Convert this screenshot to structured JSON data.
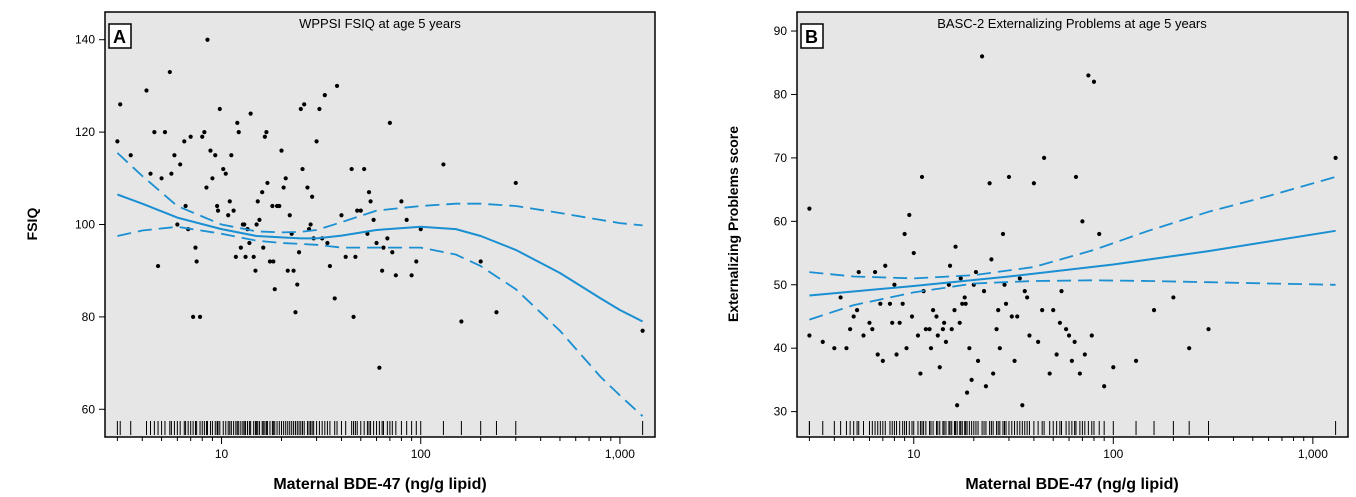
{
  "chart_data": [
    {
      "type": "scatter",
      "panel_label": "A",
      "title": "WPPSI FSIQ at age 5 years",
      "xlabel": "Maternal BDE-47 (ng/g lipid)",
      "ylabel": "FSIQ",
      "x_scale": "log",
      "xlim": [
        2.6,
        1500
      ],
      "ylim": [
        54,
        146
      ],
      "x_ticks": [
        10,
        100,
        1000
      ],
      "x_tick_labels": [
        "10",
        "100",
        "1,000"
      ],
      "y_ticks": [
        60,
        80,
        100,
        120,
        140
      ],
      "y_tick_labels": [
        "60",
        "80",
        "100",
        "120",
        "140"
      ],
      "background": "#e6e6e6",
      "fit_color": "#1a8fd1",
      "fit": {
        "x": [
          3,
          4,
          6,
          10,
          15,
          20,
          25,
          30,
          40,
          60,
          100,
          150,
          200,
          300,
          500,
          800,
          1000,
          1300
        ],
        "y": [
          106.5,
          104.5,
          101.5,
          99,
          97.5,
          97.2,
          97,
          97,
          97.6,
          98.8,
          99.5,
          99,
          97.5,
          94.5,
          89.5,
          84,
          81.5,
          79
        ]
      },
      "ci_upper": {
        "x": [
          3,
          4,
          6,
          10,
          15,
          20,
          25,
          30,
          40,
          60,
          100,
          150,
          200,
          300,
          500,
          800,
          1000,
          1300
        ],
        "y": [
          115.5,
          110.5,
          104,
          100,
          98.5,
          98.3,
          98.4,
          98.8,
          100.5,
          103,
          104,
          104.5,
          104.5,
          104,
          102.5,
          101,
          100.3,
          99.8
        ]
      },
      "ci_lower": {
        "x": [
          3,
          4,
          6,
          10,
          15,
          20,
          25,
          30,
          40,
          60,
          100,
          150,
          200,
          300,
          500,
          800,
          1000,
          1300
        ],
        "y": [
          97.5,
          98.7,
          99.5,
          98,
          96.5,
          96,
          95.8,
          95.6,
          95,
          95,
          95,
          93.5,
          91,
          86,
          77,
          67,
          63,
          58.5
        ]
      },
      "points": {
        "x": [
          3.0,
          3.1,
          3.5,
          4.2,
          4.4,
          4.8,
          5.2,
          5.5,
          5.8,
          6.2,
          6.5,
          6.8,
          7.0,
          7.5,
          8.0,
          8.5,
          9.0,
          9.5,
          10.2,
          11.0,
          12.0,
          13.0,
          14.0,
          15.0,
          16.5,
          18.0,
          20.0,
          22.0,
          25.0,
          27.0,
          30.0,
          33.0,
          38.0,
          45.0,
          50.0,
          55.0,
          60.0,
          70.0,
          80.0,
          90.0,
          100.0,
          130.0,
          160.0,
          200.0,
          240.0,
          300.0,
          1300.0,
          6.0,
          7.2,
          8.2,
          9.3,
          10.5,
          11.5,
          12.5,
          13.5,
          14.5,
          15.5,
          16.0,
          17.0,
          18.5,
          19.5,
          21.0,
          23.0,
          24.0,
          26.0,
          28.0,
          29.0,
          31.0,
          35.0,
          42.0,
          48.0,
          52.0,
          58.0,
          65.0,
          75.0,
          85.0,
          5.0,
          6.6,
          7.8,
          8.8,
          9.8,
          10.8,
          11.8,
          12.8,
          13.8,
          14.8,
          16.2,
          17.5,
          19.0,
          20.5,
          22.5,
          24.5,
          27.5,
          32.0,
          37.0,
          46.0,
          56.0,
          62.0,
          68.0,
          4.6,
          5.6,
          7.4,
          8.4,
          9.6,
          11.2,
          12.2,
          13.2,
          15.2,
          16.8,
          18.2,
          21.5,
          23.5,
          25.5,
          28.5,
          34.0,
          40.0,
          47.0,
          54.0,
          64.0,
          72.0,
          95.0
        ],
        "y": [
          118,
          126,
          115,
          129,
          111,
          91,
          120,
          133,
          115,
          113,
          118,
          99,
          119,
          92,
          119,
          140,
          110,
          104,
          112,
          105,
          122,
          100,
          124,
          100,
          119,
          104,
          116,
          102,
          125,
          108,
          118,
          128,
          130,
          112,
          103,
          107,
          96,
          122,
          105,
          89,
          99,
          113,
          79,
          92,
          81,
          109,
          77,
          100,
          80,
          120,
          115,
          111,
          103,
          95,
          99,
          93,
          101,
          107,
          109,
          86,
          104,
          110,
          90,
          87,
          126,
          100,
          97,
          125,
          91,
          93,
          103,
          112,
          101,
          95,
          89,
          101,
          110,
          104,
          80,
          116,
          125,
          102,
          93,
          100,
          96,
          90,
          95,
          92,
          104,
          108,
          98,
          94,
          99,
          97,
          84,
          80,
          105,
          69,
          97,
          120,
          111,
          95,
          108,
          103,
          115,
          120,
          93,
          105,
          120,
          92,
          90,
          81,
          112,
          106,
          96,
          102,
          93,
          98,
          90,
          94,
          92
        ]
      }
    },
    {
      "type": "scatter",
      "panel_label": "B",
      "title": "BASC-2 Externalizing Problems at age 5 years",
      "xlabel": "Maternal BDE-47 (ng/g lipid)",
      "ylabel": "Externalizing Problems score",
      "x_scale": "log",
      "xlim": [
        2.6,
        1500
      ],
      "ylim": [
        26,
        93
      ],
      "x_ticks": [
        10,
        100,
        1000
      ],
      "x_tick_labels": [
        "10",
        "100",
        "1,000"
      ],
      "y_ticks": [
        30,
        40,
        50,
        60,
        70,
        80,
        90
      ],
      "y_tick_labels": [
        "30",
        "40",
        "50",
        "60",
        "70",
        "80",
        "90"
      ],
      "background": "#e6e6e6",
      "fit_color": "#1a8fd1",
      "fit": {
        "x": [
          3,
          10,
          30,
          100,
          300,
          1300
        ],
        "y": [
          48.3,
          49.8,
          51.3,
          53.2,
          55.3,
          58.5
        ]
      },
      "ci_upper": {
        "x": [
          3,
          5,
          10,
          20,
          40,
          80,
          150,
          300,
          600,
          1300
        ],
        "y": [
          52,
          51.3,
          51,
          51.5,
          52.8,
          55.5,
          58.5,
          61.5,
          64,
          67
        ]
      },
      "ci_lower": {
        "x": [
          3,
          5,
          10,
          20,
          40,
          80,
          150,
          300,
          600,
          1300
        ],
        "y": [
          44.5,
          46.8,
          48.8,
          50.2,
          50.6,
          50.7,
          50.6,
          50.4,
          50.2,
          50
        ]
      },
      "points": {
        "x": [
          3.0,
          3.0,
          3.5,
          4.0,
          4.3,
          4.6,
          5.0,
          5.3,
          5.6,
          6.0,
          6.4,
          6.8,
          7.2,
          7.6,
          8.0,
          8.5,
          9.0,
          9.5,
          10.0,
          10.5,
          11.0,
          12.0,
          13.0,
          14.0,
          15.0,
          16.0,
          17.0,
          18.0,
          19.0,
          20.0,
          22.0,
          24.0,
          26.0,
          28.0,
          30.0,
          33.0,
          36.0,
          40.0,
          45.0,
          50.0,
          55.0,
          60.0,
          65.0,
          70.0,
          75.0,
          80.0,
          85.0,
          90.0,
          100.0,
          130.0,
          160.0,
          200.0,
          240.0,
          300.0,
          1300.0,
          5.2,
          6.2,
          7.0,
          8.2,
          9.2,
          10.8,
          11.5,
          12.5,
          13.5,
          14.5,
          15.5,
          16.5,
          17.5,
          18.5,
          19.5,
          21.0,
          23.0,
          25.0,
          27.0,
          29.0,
          32.0,
          35.0,
          38.0,
          42.0,
          48.0,
          52.0,
          58.0,
          62.0,
          68.0,
          72.0,
          78.0,
          4.8,
          6.6,
          7.8,
          8.8,
          9.8,
          11.2,
          12.2,
          13.2,
          14.2,
          15.2,
          16.2,
          17.2,
          18.2,
          20.5,
          22.5,
          24.5,
          26.5,
          28.5,
          31.0,
          34.0,
          37.0,
          44.0,
          54.0,
          64.0
        ],
        "y": [
          62,
          42,
          41,
          40,
          48,
          40,
          45,
          52,
          42,
          44,
          52,
          47,
          53,
          47,
          50,
          44,
          58,
          61,
          55,
          42,
          67,
          43,
          45,
          43,
          50,
          46,
          44,
          48,
          40,
          50,
          86,
          66,
          43,
          58,
          67,
          45,
          49,
          66,
          70,
          46,
          49,
          42,
          67,
          60,
          83,
          82,
          58,
          34,
          37,
          38,
          46,
          48,
          40,
          43,
          70,
          46,
          43,
          38,
          39,
          40,
          36,
          43,
          46,
          37,
          41,
          43,
          31,
          47,
          33,
          35,
          38,
          34,
          36,
          40,
          47,
          38,
          31,
          42,
          41,
          36,
          39,
          43,
          38,
          36,
          39,
          42,
          43,
          39,
          44,
          47,
          45,
          49,
          40,
          42,
          44,
          53,
          56,
          51,
          47,
          52,
          49,
          54,
          46,
          50,
          45,
          51,
          48,
          46,
          44,
          41
        ]
      }
    }
  ]
}
